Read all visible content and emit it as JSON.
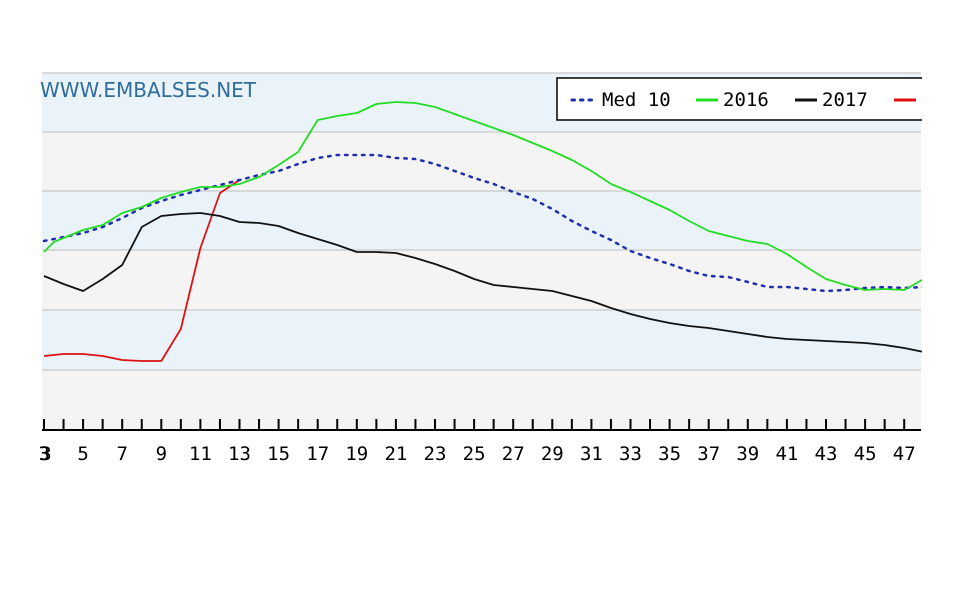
{
  "watermark": "WWW.EMBALSES.NET",
  "chart_data": {
    "type": "line",
    "title": "",
    "xlabel": "",
    "ylabel": "",
    "xlim": [
      3,
      48
    ],
    "x_tick_labels": [
      "3",
      "5",
      "7",
      "9",
      "11",
      "13",
      "15",
      "17",
      "19",
      "21",
      "23",
      "25",
      "27",
      "29",
      "31",
      "33",
      "35",
      "37",
      "39",
      "41",
      "43",
      "45",
      "47"
    ],
    "y_axis_labels_shown": false,
    "grid": "horizontal alternating bands",
    "band_colors": [
      "#eaf3fa",
      "#f4f4f4"
    ],
    "legend_position": "top-right",
    "series": [
      {
        "name": "Med 10",
        "color": "#1f2fb0",
        "style": "dotted",
        "points": [
          [
            3,
            18.9
          ],
          [
            4,
            19.3
          ],
          [
            5,
            19.7
          ],
          [
            6,
            20.3
          ],
          [
            7,
            21.2
          ],
          [
            8,
            22.2
          ],
          [
            9,
            22.9
          ],
          [
            10,
            23.5
          ],
          [
            11,
            24.0
          ],
          [
            12,
            24.5
          ],
          [
            13,
            25.0
          ],
          [
            14,
            25.5
          ],
          [
            15,
            25.9
          ],
          [
            16,
            26.6
          ],
          [
            17,
            27.2
          ],
          [
            18,
            27.5
          ],
          [
            19,
            27.5
          ],
          [
            20,
            27.5
          ],
          [
            21,
            27.2
          ],
          [
            22,
            27.1
          ],
          [
            23,
            26.6
          ],
          [
            24,
            25.9
          ],
          [
            25,
            25.2
          ],
          [
            26,
            24.6
          ],
          [
            27,
            23.8
          ],
          [
            28,
            23.1
          ],
          [
            29,
            22.1
          ],
          [
            30,
            20.9
          ],
          [
            31,
            19.9
          ],
          [
            32,
            19.0
          ],
          [
            33,
            17.9
          ],
          [
            34,
            17.2
          ],
          [
            35,
            16.6
          ],
          [
            36,
            15.9
          ],
          [
            37,
            15.4
          ],
          [
            38,
            15.3
          ],
          [
            39,
            14.8
          ],
          [
            40,
            14.3
          ],
          [
            41,
            14.3
          ],
          [
            42,
            14.1
          ],
          [
            43,
            13.9
          ],
          [
            44,
            14.0
          ],
          [
            45,
            14.2
          ],
          [
            46,
            14.3
          ],
          [
            47,
            14.2
          ],
          [
            48,
            14.3
          ]
        ]
      },
      {
        "name": "2016",
        "color": "#22dd22",
        "style": "solid",
        "points": [
          [
            3,
            17.8
          ],
          [
            3.5,
            18.8
          ],
          [
            5,
            20.0
          ],
          [
            6,
            20.5
          ],
          [
            7,
            21.7
          ],
          [
            8,
            22.3
          ],
          [
            9,
            23.2
          ],
          [
            10,
            23.8
          ],
          [
            11,
            24.3
          ],
          [
            12,
            24.3
          ],
          [
            13,
            24.6
          ],
          [
            14,
            25.3
          ],
          [
            15,
            26.5
          ],
          [
            16,
            27.8
          ],
          [
            17,
            31.0
          ],
          [
            18,
            31.4
          ],
          [
            19,
            31.7
          ],
          [
            20,
            32.6
          ],
          [
            21,
            32.8
          ],
          [
            22,
            32.7
          ],
          [
            23,
            32.3
          ],
          [
            24,
            31.6
          ],
          [
            25,
            30.9
          ],
          [
            26,
            30.2
          ],
          [
            27,
            29.5
          ],
          [
            28,
            28.7
          ],
          [
            29,
            27.9
          ],
          [
            30,
            27.0
          ],
          [
            31,
            25.9
          ],
          [
            32,
            24.6
          ],
          [
            33,
            23.8
          ],
          [
            34,
            22.9
          ],
          [
            35,
            22.0
          ],
          [
            36,
            20.9
          ],
          [
            37,
            19.9
          ],
          [
            38,
            19.4
          ],
          [
            39,
            18.9
          ],
          [
            40,
            18.6
          ],
          [
            41,
            17.6
          ],
          [
            42,
            16.3
          ],
          [
            43,
            15.1
          ],
          [
            44,
            14.5
          ],
          [
            45,
            14.0
          ],
          [
            46,
            14.1
          ],
          [
            47,
            14.0
          ],
          [
            48,
            15.1
          ]
        ]
      },
      {
        "name": "2017",
        "color": "#111111",
        "style": "solid",
        "points": [
          [
            3,
            15.4
          ],
          [
            4,
            14.6
          ],
          [
            5,
            13.9
          ],
          [
            6,
            15.1
          ],
          [
            7,
            16.5
          ],
          [
            8,
            20.3
          ],
          [
            9,
            21.4
          ],
          [
            10,
            21.6
          ],
          [
            11,
            21.7
          ],
          [
            12,
            21.4
          ],
          [
            13,
            20.8
          ],
          [
            14,
            20.7
          ],
          [
            15,
            20.4
          ],
          [
            16,
            19.7
          ],
          [
            17,
            19.1
          ],
          [
            18,
            18.5
          ],
          [
            19,
            17.8
          ],
          [
            20,
            17.8
          ],
          [
            21,
            17.7
          ],
          [
            22,
            17.2
          ],
          [
            23,
            16.6
          ],
          [
            24,
            15.9
          ],
          [
            25,
            15.1
          ],
          [
            26,
            14.5
          ],
          [
            27,
            14.3
          ],
          [
            28,
            14.1
          ],
          [
            29,
            13.9
          ],
          [
            30,
            13.4
          ],
          [
            31,
            12.9
          ],
          [
            32,
            12.2
          ],
          [
            33,
            11.6
          ],
          [
            34,
            11.1
          ],
          [
            35,
            10.7
          ],
          [
            36,
            10.4
          ],
          [
            37,
            10.2
          ],
          [
            38,
            9.9
          ],
          [
            39,
            9.6
          ],
          [
            40,
            9.3
          ],
          [
            41,
            9.1
          ],
          [
            42,
            9.0
          ],
          [
            43,
            8.9
          ],
          [
            44,
            8.8
          ],
          [
            45,
            8.7
          ],
          [
            46,
            8.5
          ],
          [
            47,
            8.2
          ],
          [
            48,
            7.8
          ]
        ]
      },
      {
        "name": "",
        "color": "#dd1111",
        "style": "solid",
        "points": [
          [
            3,
            7.4
          ],
          [
            4,
            7.6
          ],
          [
            5,
            7.6
          ],
          [
            6,
            7.4
          ],
          [
            7,
            7.0
          ],
          [
            8,
            6.9
          ],
          [
            9,
            6.9
          ],
          [
            10,
            10.1
          ],
          [
            11,
            18.2
          ],
          [
            12,
            23.7
          ],
          [
            13,
            25.0
          ]
        ]
      }
    ]
  }
}
